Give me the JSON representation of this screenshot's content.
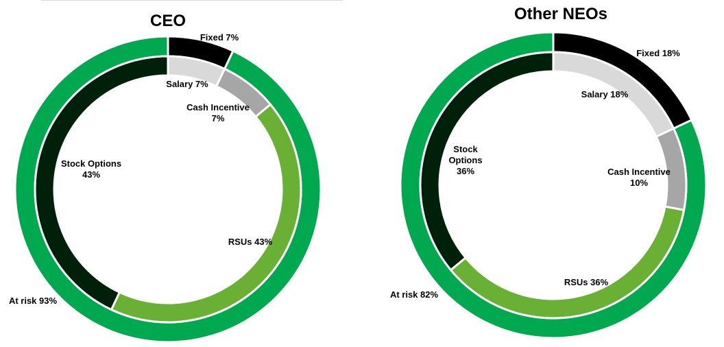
{
  "chart_data": [
    {
      "type": "donut",
      "title": "CEO",
      "outer": [
        {
          "label": "Fixed 7%",
          "value": 7,
          "color": "#000000"
        },
        {
          "label": "At risk 93%",
          "value": 93,
          "color": "#00a84f"
        }
      ],
      "inner": [
        {
          "label": "Salary 7%",
          "value": 7,
          "color": "#d9d9d9"
        },
        {
          "label": "Cash Incentive\n7%",
          "value": 7,
          "color": "#a6a6a6"
        },
        {
          "label": "RSUs 43%",
          "value": 43,
          "color": "#6ab035"
        },
        {
          "label": "Stock Options\n43%",
          "value": 43,
          "color": "#00200a"
        }
      ]
    },
    {
      "type": "donut",
      "title": "Other NEOs",
      "outer": [
        {
          "label": "Fixed 18%",
          "value": 18,
          "color": "#000000"
        },
        {
          "label": "At risk 82%",
          "value": 82,
          "color": "#00a84f"
        }
      ],
      "inner": [
        {
          "label": "Salary 18%",
          "value": 18,
          "color": "#d9d9d9"
        },
        {
          "label": "Cash Incentive\n10%",
          "value": 10,
          "color": "#a6a6a6"
        },
        {
          "label": "RSUs 36%",
          "value": 36,
          "color": "#6ab035"
        },
        {
          "label": "Stock\nOptions\n36%",
          "value": 36,
          "color": "#00200a"
        }
      ]
    }
  ]
}
